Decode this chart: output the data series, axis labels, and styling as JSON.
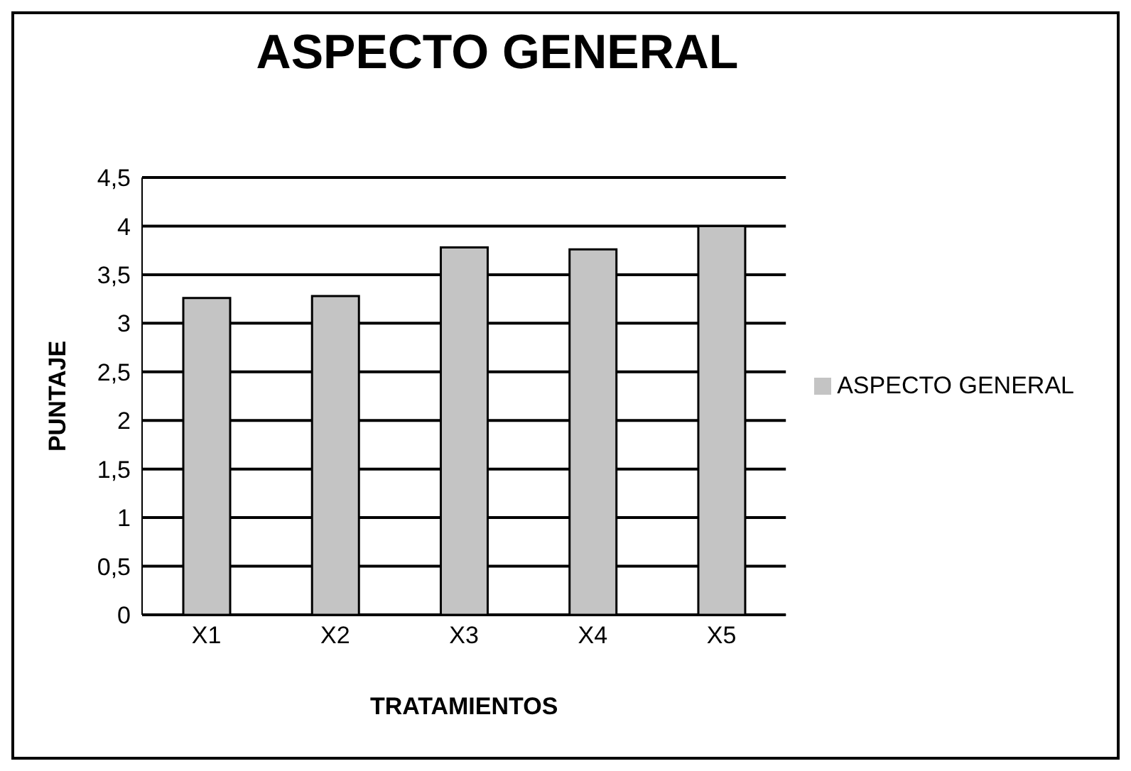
{
  "chart_data": {
    "type": "bar",
    "title": "ASPECTO GENERAL",
    "xlabel": "TRATAMIENTOS",
    "ylabel": "PUNTAJE",
    "categories": [
      "X1",
      "X2",
      "X3",
      "X4",
      "X5"
    ],
    "series": [
      {
        "name": "ASPECTO GENERAL",
        "color": "#c4c4c4",
        "values": [
          3.26,
          3.28,
          3.78,
          3.76,
          4.0
        ]
      }
    ],
    "ylim": [
      0,
      4.5
    ],
    "yticks": [
      {
        "value": 0,
        "label": "0"
      },
      {
        "value": 0.5,
        "label": "0,5"
      },
      {
        "value": 1,
        "label": "1"
      },
      {
        "value": 1.5,
        "label": "1,5"
      },
      {
        "value": 2,
        "label": "2"
      },
      {
        "value": 2.5,
        "label": "2,5"
      },
      {
        "value": 3,
        "label": "3"
      },
      {
        "value": 3.5,
        "label": "3,5"
      },
      {
        "value": 4,
        "label": "4"
      },
      {
        "value": 4.5,
        "label": "4,5"
      }
    ],
    "grid": "y",
    "legend": "right"
  }
}
